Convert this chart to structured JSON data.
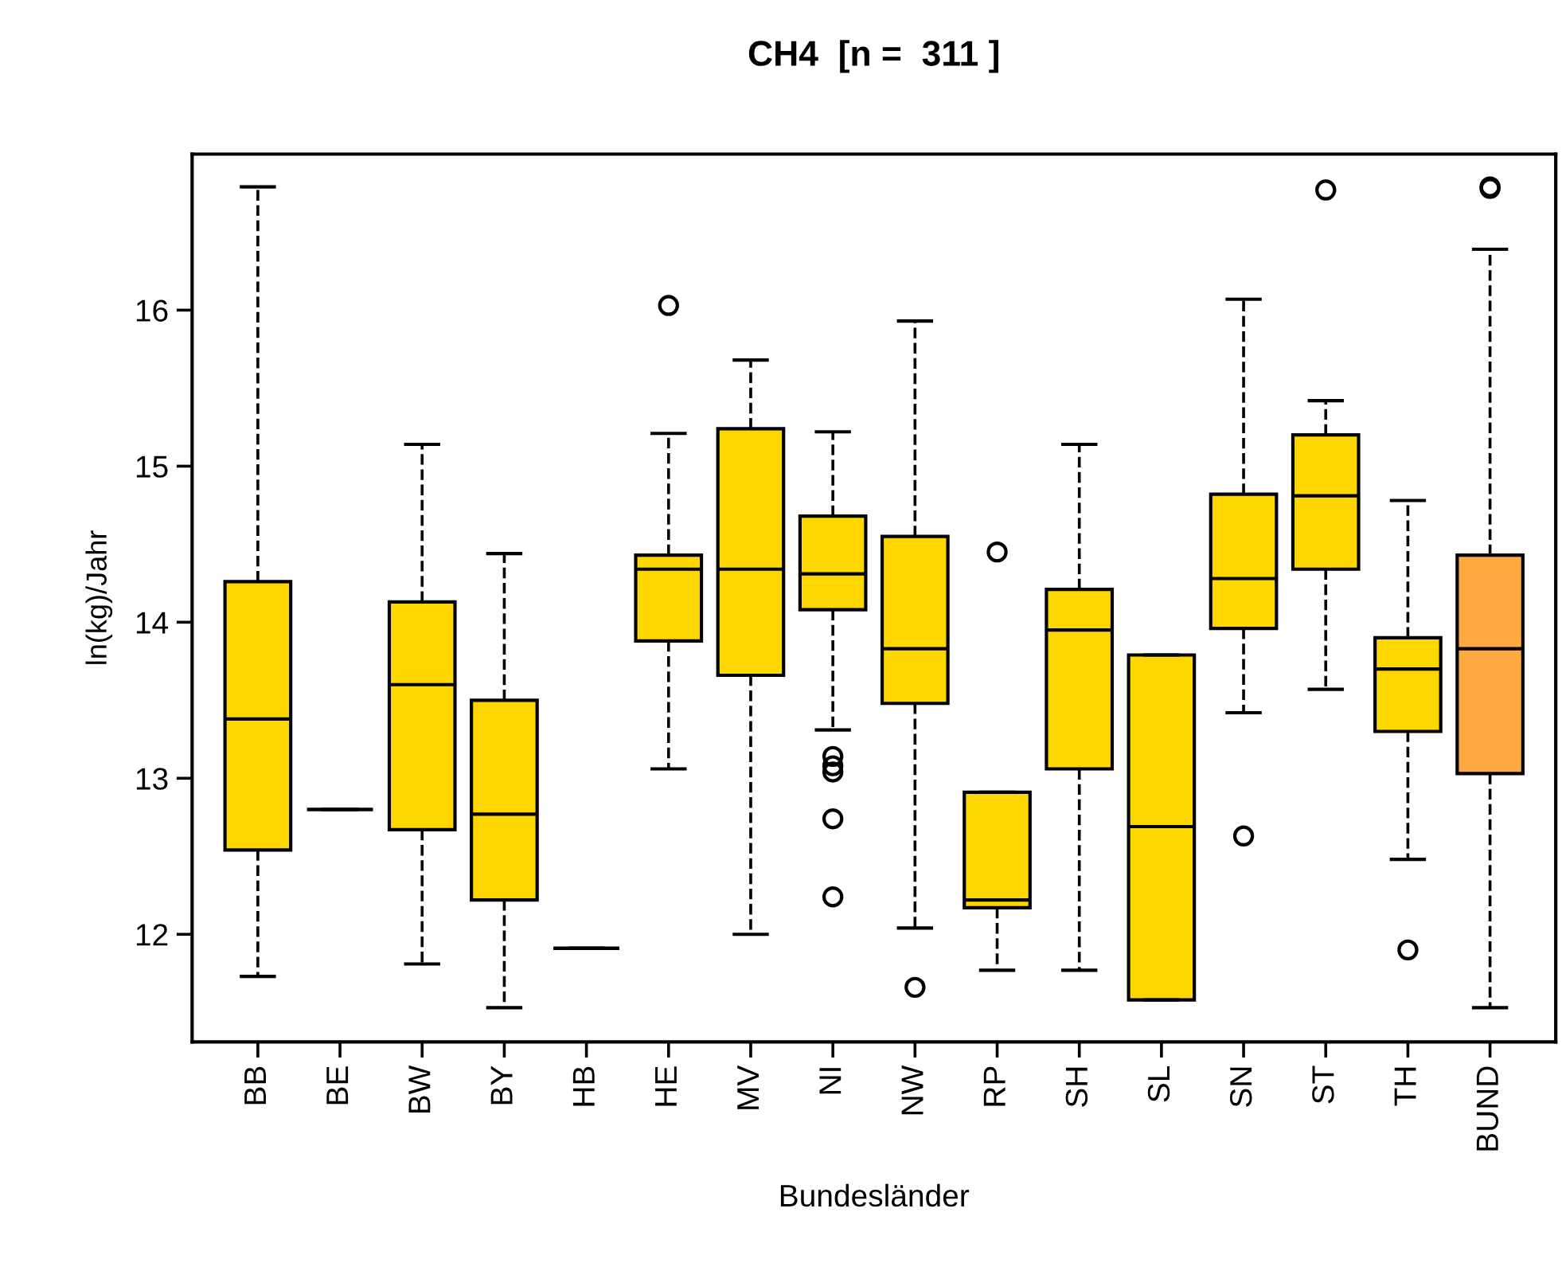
{
  "chart_data": {
    "type": "box",
    "title": "CH4  [n =  311 ]",
    "xlabel": "Bundesländer",
    "ylabel": "ln(kg)/Jahr",
    "categories": [
      "BB",
      "BE",
      "BW",
      "BY",
      "HB",
      "HE",
      "MV",
      "NI",
      "NW",
      "RP",
      "SH",
      "SL",
      "SN",
      "ST",
      "TH",
      "BUND"
    ],
    "colors": [
      "#ffd700",
      "#000000",
      "#ffd700",
      "#ffd700",
      "#000000",
      "#ffd700",
      "#ffd700",
      "#ffd700",
      "#ffd700",
      "#ffd700",
      "#ffd700",
      "#ffd700",
      "#ffd700",
      "#ffd700",
      "#ffd700",
      "#ffa940"
    ],
    "boxes": [
      {
        "low": 11.73,
        "q1": 12.54,
        "median": 13.38,
        "q3": 14.26,
        "high": 16.79
      },
      {
        "low": 12.8,
        "q1": 12.8,
        "median": 12.8,
        "q3": 12.8,
        "high": 12.8
      },
      {
        "low": 11.81,
        "q1": 12.67,
        "median": 13.6,
        "q3": 14.13,
        "high": 15.14
      },
      {
        "low": 11.53,
        "q1": 12.22,
        "median": 12.77,
        "q3": 13.5,
        "high": 14.44
      },
      {
        "low": 11.91,
        "q1": 11.91,
        "median": 11.91,
        "q3": 11.91,
        "high": 11.91
      },
      {
        "low": 13.06,
        "q1": 13.88,
        "median": 14.34,
        "q3": 14.43,
        "high": 15.21,
        "outliers": [
          16.03
        ]
      },
      {
        "low": 12.0,
        "q1": 13.66,
        "median": 14.34,
        "q3": 15.24,
        "high": 15.68
      },
      {
        "low": 13.31,
        "q1": 14.08,
        "median": 14.31,
        "q3": 14.68,
        "high": 15.22,
        "outliers": [
          13.14,
          13.08,
          13.04,
          12.74,
          12.24
        ]
      },
      {
        "low": 12.04,
        "q1": 13.48,
        "median": 13.83,
        "q3": 14.55,
        "high": 15.93,
        "outliers": [
          11.66
        ]
      },
      {
        "low": 11.77,
        "q1": 12.17,
        "median": 12.22,
        "q3": 12.91,
        "high": 12.91,
        "outliers": [
          14.45
        ]
      },
      {
        "low": 11.77,
        "q1": 13.06,
        "median": 13.95,
        "q3": 14.21,
        "high": 15.14
      },
      {
        "low": 11.58,
        "q1": 11.58,
        "median": 12.69,
        "q3": 13.79,
        "high": 13.79
      },
      {
        "low": 13.42,
        "q1": 13.96,
        "median": 14.28,
        "q3": 14.82,
        "high": 16.07,
        "outliers": [
          12.63
        ]
      },
      {
        "low": 13.57,
        "q1": 14.34,
        "median": 14.81,
        "q3": 15.2,
        "high": 15.42,
        "outliers": [
          16.77
        ]
      },
      {
        "low": 12.48,
        "q1": 13.3,
        "median": 13.7,
        "q3": 13.9,
        "high": 14.78,
        "outliers": [
          11.9
        ]
      },
      {
        "low": 11.53,
        "q1": 13.03,
        "median": 13.83,
        "q3": 14.43,
        "high": 16.39,
        "outliers": [
          16.78,
          16.79
        ]
      }
    ],
    "ylim": [
      11.31,
      17.0
    ],
    "yticks": [
      12,
      13,
      14,
      15,
      16
    ],
    "grid": false,
    "legend": false,
    "line_style": "dashed"
  }
}
